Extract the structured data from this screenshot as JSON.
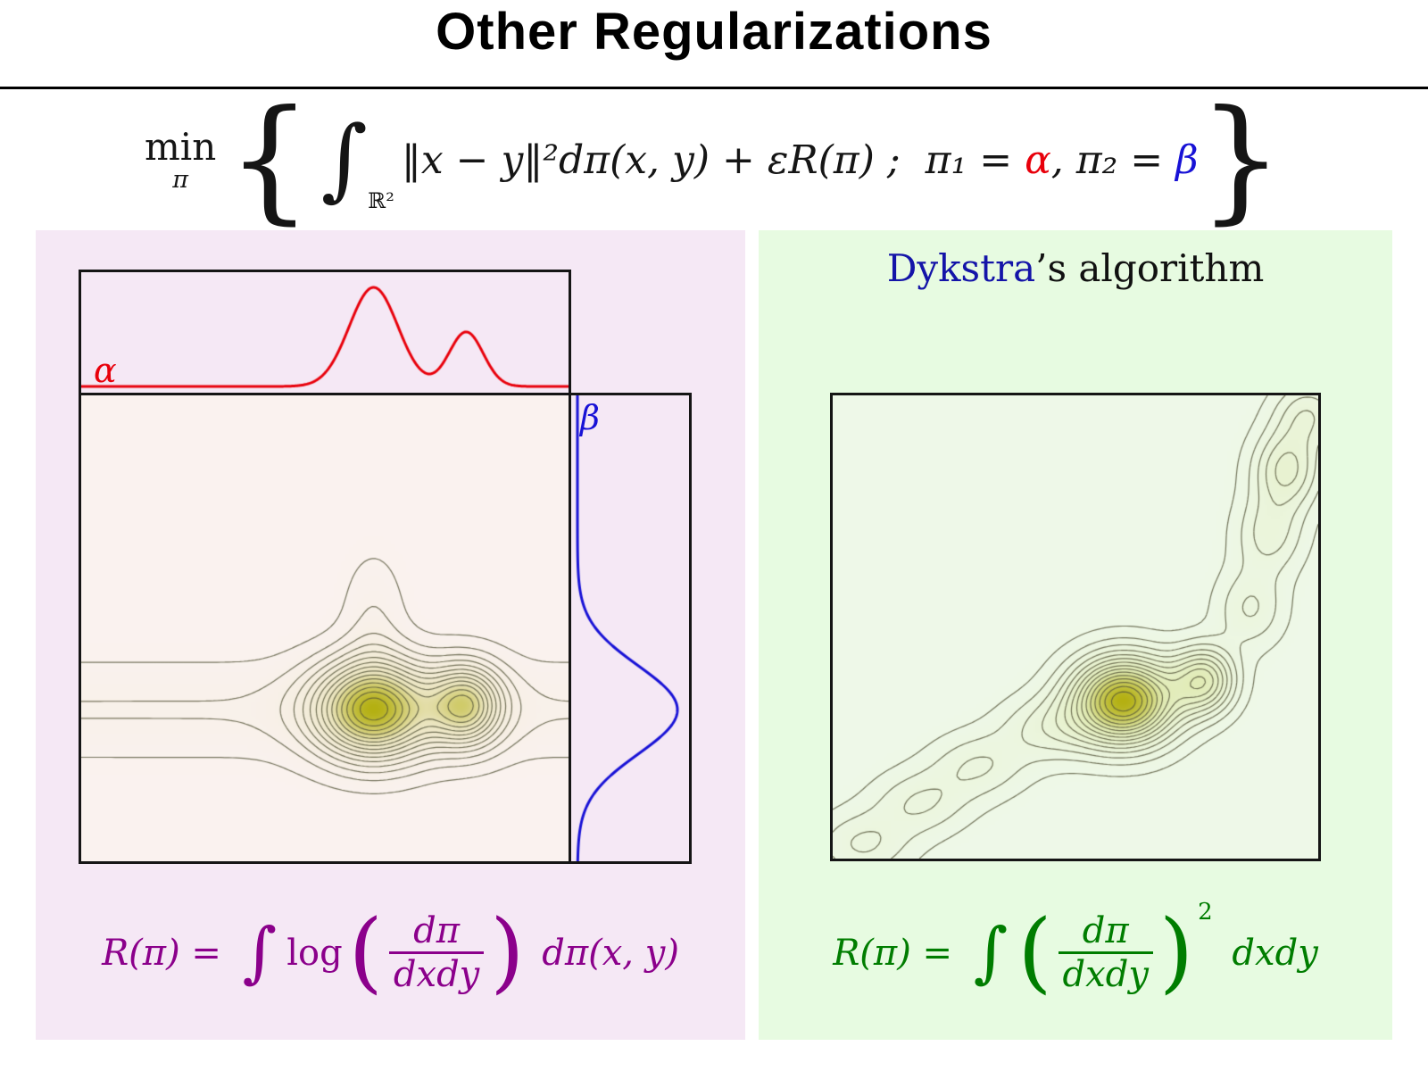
{
  "title": "Other Regularizations",
  "formula": {
    "min": "min",
    "min_sub": "π",
    "lbrace": "{",
    "integral": "∫",
    "integral_domain": "ℝ²",
    "body": "‖x − y‖²dπ(x, y) + εR(π) ;  π₁ = ",
    "alpha": "α",
    "mid": ", π₂ = ",
    "beta": "β",
    "rbrace": "}"
  },
  "left_panel": {
    "alpha_label": "α",
    "beta_label": "β",
    "formula": {
      "lhs": "R(π) = ",
      "integral": "∫",
      "log": "log",
      "lparen": "(",
      "frac_top": "dπ",
      "frac_bottom": "dxdy",
      "rparen": ")",
      "tail": " dπ(x, y)"
    }
  },
  "right_panel": {
    "heading_name": "Dykstra",
    "heading_rest": "’s algorithm",
    "formula": {
      "lhs": "R(π) = ",
      "integral": "∫",
      "lparen": "(",
      "frac_top": "dπ",
      "frac_bottom": "dxdy",
      "rparen": ")",
      "power": "2",
      "tail": " dxdy"
    }
  },
  "colors": {
    "alpha": "#e8000b",
    "beta": "#1812d6",
    "dykstra": "#1414a8",
    "purple_formula": "#8b008b",
    "green_formula": "#007d00",
    "panel_left_bg": "#f5e8f5",
    "panel_right_bg": "#e7fbe1"
  },
  "chart_data": [
    {
      "type": "contour",
      "title": "entropic-regularized coupling with marginals alpha (top) and beta (right)",
      "x_range": [
        0,
        1
      ],
      "y_range": [
        0,
        1
      ],
      "grid_n": 130,
      "levels": {
        "count": 15,
        "min": 0.045,
        "max": 0.95
      },
      "fill_stops": [
        "#faf2ef",
        "#eae4bd",
        "#b4b012"
      ],
      "line_color": "rgba(85,85,58,0.8)",
      "components": [
        {
          "cx": 0.5,
          "cy": 0.675,
          "sx": 9.0,
          "sy": 0.075,
          "a": 0.13
        },
        {
          "cx": 0.6,
          "cy": 0.675,
          "sx": 0.083,
          "sy": 0.072,
          "a": 1.0
        },
        {
          "cx": 0.79,
          "cy": 0.665,
          "sx": 0.052,
          "sy": 0.06,
          "a": 0.72
        },
        {
          "cx": 0.6,
          "cy": 0.48,
          "sx": 0.045,
          "sy": 0.1,
          "a": 0.12
        }
      ],
      "marginals": {
        "alpha": {
          "orientation": "top",
          "color": "#e8000b",
          "components": [
            {
              "c": 0.6,
              "s": 0.05,
              "a": 1.0
            },
            {
              "c": 0.79,
              "s": 0.035,
              "a": 0.55
            }
          ]
        },
        "beta": {
          "orientation": "right",
          "color": "#1812d6",
          "components": [
            {
              "c": 0.675,
              "s": 0.095,
              "a": 1.0
            }
          ]
        }
      }
    },
    {
      "type": "contour",
      "title": "quadratic-regularized coupling computed with Dykstra's algorithm",
      "x_range": [
        0,
        1
      ],
      "y_range": [
        0,
        1
      ],
      "grid_n": 130,
      "levels": {
        "count": 15,
        "min": 0.045,
        "max": 0.95
      },
      "fill_stops": [
        "#eef8e8",
        "#e0eab2",
        "#b4b012"
      ],
      "line_color": "rgba(85,85,58,0.8)",
      "components": [
        {
          "cx": 0.06,
          "cy": 0.97,
          "sx": 0.07,
          "sy": 0.05,
          "a": 0.18
        },
        {
          "cx": 0.18,
          "cy": 0.88,
          "sx": 0.07,
          "sy": 0.05,
          "a": 0.17
        },
        {
          "cx": 0.3,
          "cy": 0.8,
          "sx": 0.07,
          "sy": 0.05,
          "a": 0.17
        },
        {
          "cx": 0.44,
          "cy": 0.72,
          "sx": 0.07,
          "sy": 0.05,
          "a": 0.18
        },
        {
          "cx": 0.6,
          "cy": 0.66,
          "sx": 0.075,
          "sy": 0.065,
          "a": 1.0
        },
        {
          "cx": 0.765,
          "cy": 0.615,
          "sx": 0.045,
          "sy": 0.05,
          "a": 0.5
        },
        {
          "cx": 0.86,
          "cy": 0.46,
          "sx": 0.05,
          "sy": 0.06,
          "a": 0.18
        },
        {
          "cx": 0.9,
          "cy": 0.3,
          "sx": 0.05,
          "sy": 0.06,
          "a": 0.2
        },
        {
          "cx": 0.935,
          "cy": 0.16,
          "sx": 0.05,
          "sy": 0.06,
          "a": 0.32
        },
        {
          "cx": 0.98,
          "cy": 0.04,
          "sx": 0.05,
          "sy": 0.05,
          "a": 0.22
        }
      ]
    }
  ]
}
